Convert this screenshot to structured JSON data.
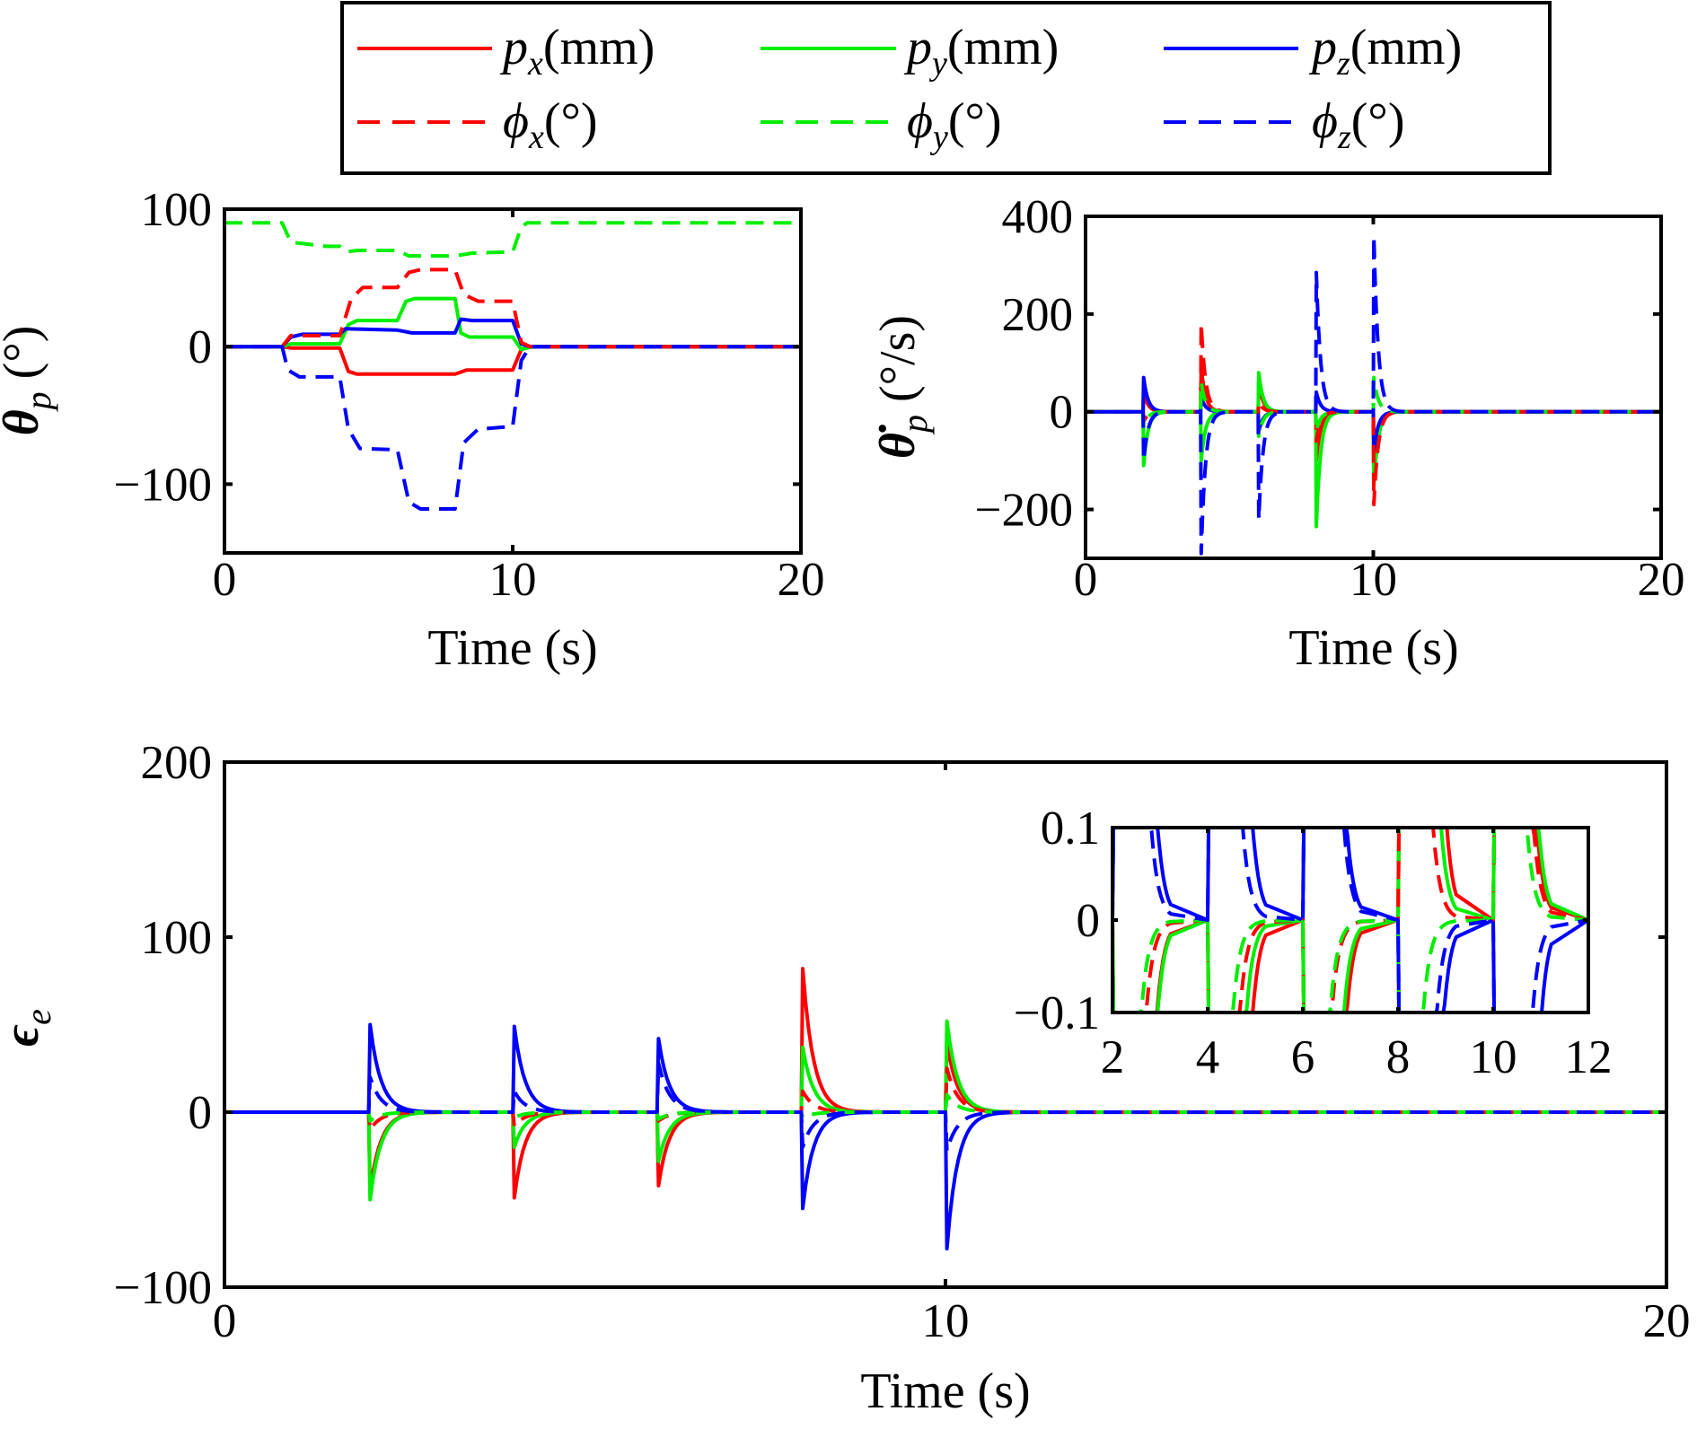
{
  "legend": {
    "entries": [
      {
        "key": "px",
        "symbol": "p",
        "sub": "x",
        "unit": "(mm)",
        "color": "#ff0000",
        "dashed": false
      },
      {
        "key": "py",
        "symbol": "p",
        "sub": "y",
        "unit": "(mm)",
        "color": "#00ee00",
        "dashed": false
      },
      {
        "key": "pz",
        "symbol": "p",
        "sub": "z",
        "unit": "(mm)",
        "color": "#0000ff",
        "dashed": false
      },
      {
        "key": "phx",
        "symbol": "ϕ",
        "sub": "x",
        "unit": "(°)",
        "color": "#ff0000",
        "dashed": true
      },
      {
        "key": "phy",
        "symbol": "ϕ",
        "sub": "y",
        "unit": "(°)",
        "color": "#00ee00",
        "dashed": true
      },
      {
        "key": "phz",
        "symbol": "ϕ",
        "sub": "z",
        "unit": "(°)",
        "color": "#0000ff",
        "dashed": true
      }
    ],
    "placement": "top-center"
  },
  "chart_data": [
    {
      "type": "line",
      "xlabel": "Time (s)",
      "ylabel": {
        "symbol": "θ",
        "sub": "p",
        "unit": " (°)"
      },
      "xlim": [
        0,
        20
      ],
      "ylim": [
        -150,
        100
      ],
      "xticks": [
        0,
        10,
        20
      ],
      "yticks": [
        -100,
        0,
        100
      ],
      "xtick_labels": [
        "0",
        "10",
        "20"
      ],
      "ytick_labels": [
        "−100",
        "0",
        "100"
      ],
      "grid": false,
      "series": [
        {
          "key": "px",
          "values": [
            [
              0,
              0
            ],
            [
              2,
              0
            ],
            [
              2.3,
              -1
            ],
            [
              4,
              -1
            ],
            [
              4.3,
              -18
            ],
            [
              4.6,
              -20
            ],
            [
              6,
              -20
            ],
            [
              8,
              -20
            ],
            [
              8.4,
              -17
            ],
            [
              10,
              -17
            ],
            [
              10.3,
              -2
            ],
            [
              10.6,
              0
            ],
            [
              20,
              0
            ]
          ]
        },
        {
          "key": "py",
          "values": [
            [
              0,
              0
            ],
            [
              2,
              0
            ],
            [
              2.3,
              2
            ],
            [
              4,
              2
            ],
            [
              4.3,
              16
            ],
            [
              4.6,
              19
            ],
            [
              6,
              19
            ],
            [
              6.3,
              33
            ],
            [
              6.6,
              35
            ],
            [
              8,
              35
            ],
            [
              8.2,
              10
            ],
            [
              8.5,
              7
            ],
            [
              10,
              7
            ],
            [
              10.3,
              -2
            ],
            [
              10.7,
              0
            ],
            [
              20,
              0
            ]
          ]
        },
        {
          "key": "pz",
          "values": [
            [
              0,
              0
            ],
            [
              2,
              0
            ],
            [
              2.3,
              7
            ],
            [
              2.7,
              9
            ],
            [
              4,
              9
            ],
            [
              4.2,
              13
            ],
            [
              6,
              12
            ],
            [
              6.5,
              10
            ],
            [
              8,
              10
            ],
            [
              8.2,
              20
            ],
            [
              8.6,
              19
            ],
            [
              10,
              19
            ],
            [
              10.3,
              2
            ],
            [
              10.6,
              0
            ],
            [
              20,
              0
            ]
          ]
        },
        {
          "key": "phx",
          "values": [
            [
              0,
              0
            ],
            [
              2,
              0
            ],
            [
              2.3,
              8
            ],
            [
              4,
              8
            ],
            [
              4.4,
              35
            ],
            [
              4.8,
              43
            ],
            [
              6,
              43
            ],
            [
              6.4,
              54
            ],
            [
              6.8,
              56
            ],
            [
              8,
              56
            ],
            [
              8.3,
              38
            ],
            [
              8.8,
              33
            ],
            [
              10,
              33
            ],
            [
              10.3,
              3
            ],
            [
              10.6,
              0
            ],
            [
              20,
              0
            ]
          ]
        },
        {
          "key": "phy",
          "values": [
            [
              0,
              90
            ],
            [
              2,
              90
            ],
            [
              2.3,
              76
            ],
            [
              3.5,
              73
            ],
            [
              4,
              73
            ],
            [
              4.2,
              69
            ],
            [
              4.6,
              70
            ],
            [
              6,
              70
            ],
            [
              6.4,
              66
            ],
            [
              8,
              66
            ],
            [
              8.6,
              68
            ],
            [
              10,
              69
            ],
            [
              10.3,
              87
            ],
            [
              10.5,
              90
            ],
            [
              20,
              90
            ]
          ]
        },
        {
          "key": "phz",
          "values": [
            [
              0,
              0
            ],
            [
              2,
              0
            ],
            [
              2.2,
              -17
            ],
            [
              2.6,
              -22
            ],
            [
              4,
              -22
            ],
            [
              4.3,
              -60
            ],
            [
              4.7,
              -74
            ],
            [
              6,
              -75
            ],
            [
              6.4,
              -113
            ],
            [
              6.8,
              -118
            ],
            [
              8,
              -118
            ],
            [
              8.3,
              -70
            ],
            [
              8.8,
              -60
            ],
            [
              10,
              -58
            ],
            [
              10.3,
              -10
            ],
            [
              10.6,
              0
            ],
            [
              20,
              0
            ]
          ]
        }
      ]
    },
    {
      "type": "line",
      "xlabel": "Time (s)",
      "ylabel": {
        "symbol": "θ̇",
        "sub": "p",
        "unit": " (°/s)"
      },
      "xlim": [
        0,
        20
      ],
      "ylim": [
        -300,
        400
      ],
      "xticks": [
        0,
        10,
        20
      ],
      "yticks": [
        -200,
        0,
        200,
        400
      ],
      "xtick_labels": [
        "0",
        "10",
        "20"
      ],
      "ytick_labels": [
        "−200",
        "0",
        "200",
        "400"
      ],
      "grid": false,
      "series": [
        {
          "key": "px",
          "spikes": [
            [
              2,
              40
            ],
            [
              4,
              90
            ],
            [
              6,
              60
            ],
            [
              8,
              -100
            ],
            [
              10,
              -140
            ]
          ]
        },
        {
          "key": "py",
          "spikes": [
            [
              2,
              -110
            ],
            [
              4,
              -100
            ],
            [
              6,
              80
            ],
            [
              8,
              -235
            ],
            [
              10,
              -150
            ]
          ]
        },
        {
          "key": "pz",
          "spikes": [
            [
              2,
              70
            ],
            [
              4,
              30
            ],
            [
              6,
              -40
            ],
            [
              8,
              40
            ],
            [
              10,
              -80
            ]
          ]
        },
        {
          "key": "phx",
          "spikes": [
            [
              2,
              -20
            ],
            [
              4,
              180
            ],
            [
              6,
              20
            ],
            [
              8,
              -60
            ],
            [
              10,
              -190
            ]
          ]
        },
        {
          "key": "phy",
          "spikes": [
            [
              2,
              -30
            ],
            [
              4,
              60
            ],
            [
              6,
              -50
            ],
            [
              8,
              -40
            ],
            [
              10,
              70
            ]
          ]
        },
        {
          "key": "phz",
          "spikes": [
            [
              2,
              -100
            ],
            [
              4,
              -290
            ],
            [
              6,
              -220
            ],
            [
              8,
              285
            ],
            [
              10,
              360
            ]
          ]
        }
      ]
    },
    {
      "type": "line",
      "xlabel": "Time (s)",
      "ylabel": {
        "symbol": "ϵ",
        "sub": "e",
        "unit": ""
      },
      "xlim": [
        0,
        20
      ],
      "ylim": [
        -100,
        200
      ],
      "xticks": [
        0,
        10,
        20
      ],
      "yticks": [
        -100,
        0,
        100,
        200
      ],
      "xtick_labels": [
        "0",
        "10",
        "20"
      ],
      "ytick_labels": [
        "−100",
        "0",
        "100",
        "200"
      ],
      "grid": false,
      "series": [
        {
          "key": "px",
          "spikes": [
            [
              2,
              -45
            ],
            [
              4,
              -49
            ],
            [
              6,
              -42
            ],
            [
              8,
              82
            ],
            [
              10,
              40
            ]
          ]
        },
        {
          "key": "py",
          "spikes": [
            [
              2,
              -50
            ],
            [
              4,
              -20
            ],
            [
              6,
              -28
            ],
            [
              8,
              37
            ],
            [
              10,
              52
            ]
          ]
        },
        {
          "key": "pz",
          "spikes": [
            [
              2,
              50
            ],
            [
              4,
              49
            ],
            [
              6,
              42
            ],
            [
              8,
              -55
            ],
            [
              10,
              -78
            ]
          ]
        },
        {
          "key": "phx",
          "spikes": [
            [
              2,
              -10
            ],
            [
              4,
              -8
            ],
            [
              6,
              -5
            ],
            [
              8,
              12
            ],
            [
              10,
              25
            ]
          ]
        },
        {
          "key": "phy",
          "spikes": [
            [
              2,
              -5
            ],
            [
              4,
              -3
            ],
            [
              6,
              -4
            ],
            [
              8,
              -3
            ],
            [
              10,
              10
            ]
          ]
        },
        {
          "key": "phz",
          "spikes": [
            [
              2,
              20
            ],
            [
              4,
              12
            ],
            [
              6,
              28
            ],
            [
              8,
              -20
            ],
            [
              10,
              -22
            ]
          ]
        }
      ]
    },
    {
      "type": "line",
      "inset_of": 2,
      "xlabel": "",
      "ylabel": {
        "symbol": "",
        "sub": "",
        "unit": ""
      },
      "xlim": [
        2,
        12
      ],
      "ylim": [
        -0.1,
        0.1
      ],
      "xticks": [
        2,
        4,
        6,
        8,
        10,
        12
      ],
      "yticks": [
        -0.1,
        0,
        0.1
      ],
      "xtick_labels": [
        "2",
        "4",
        "6",
        "8",
        "10",
        "12"
      ],
      "ytick_labels": [
        "−0.1",
        "0",
        "0.1"
      ],
      "grid": false
    }
  ]
}
